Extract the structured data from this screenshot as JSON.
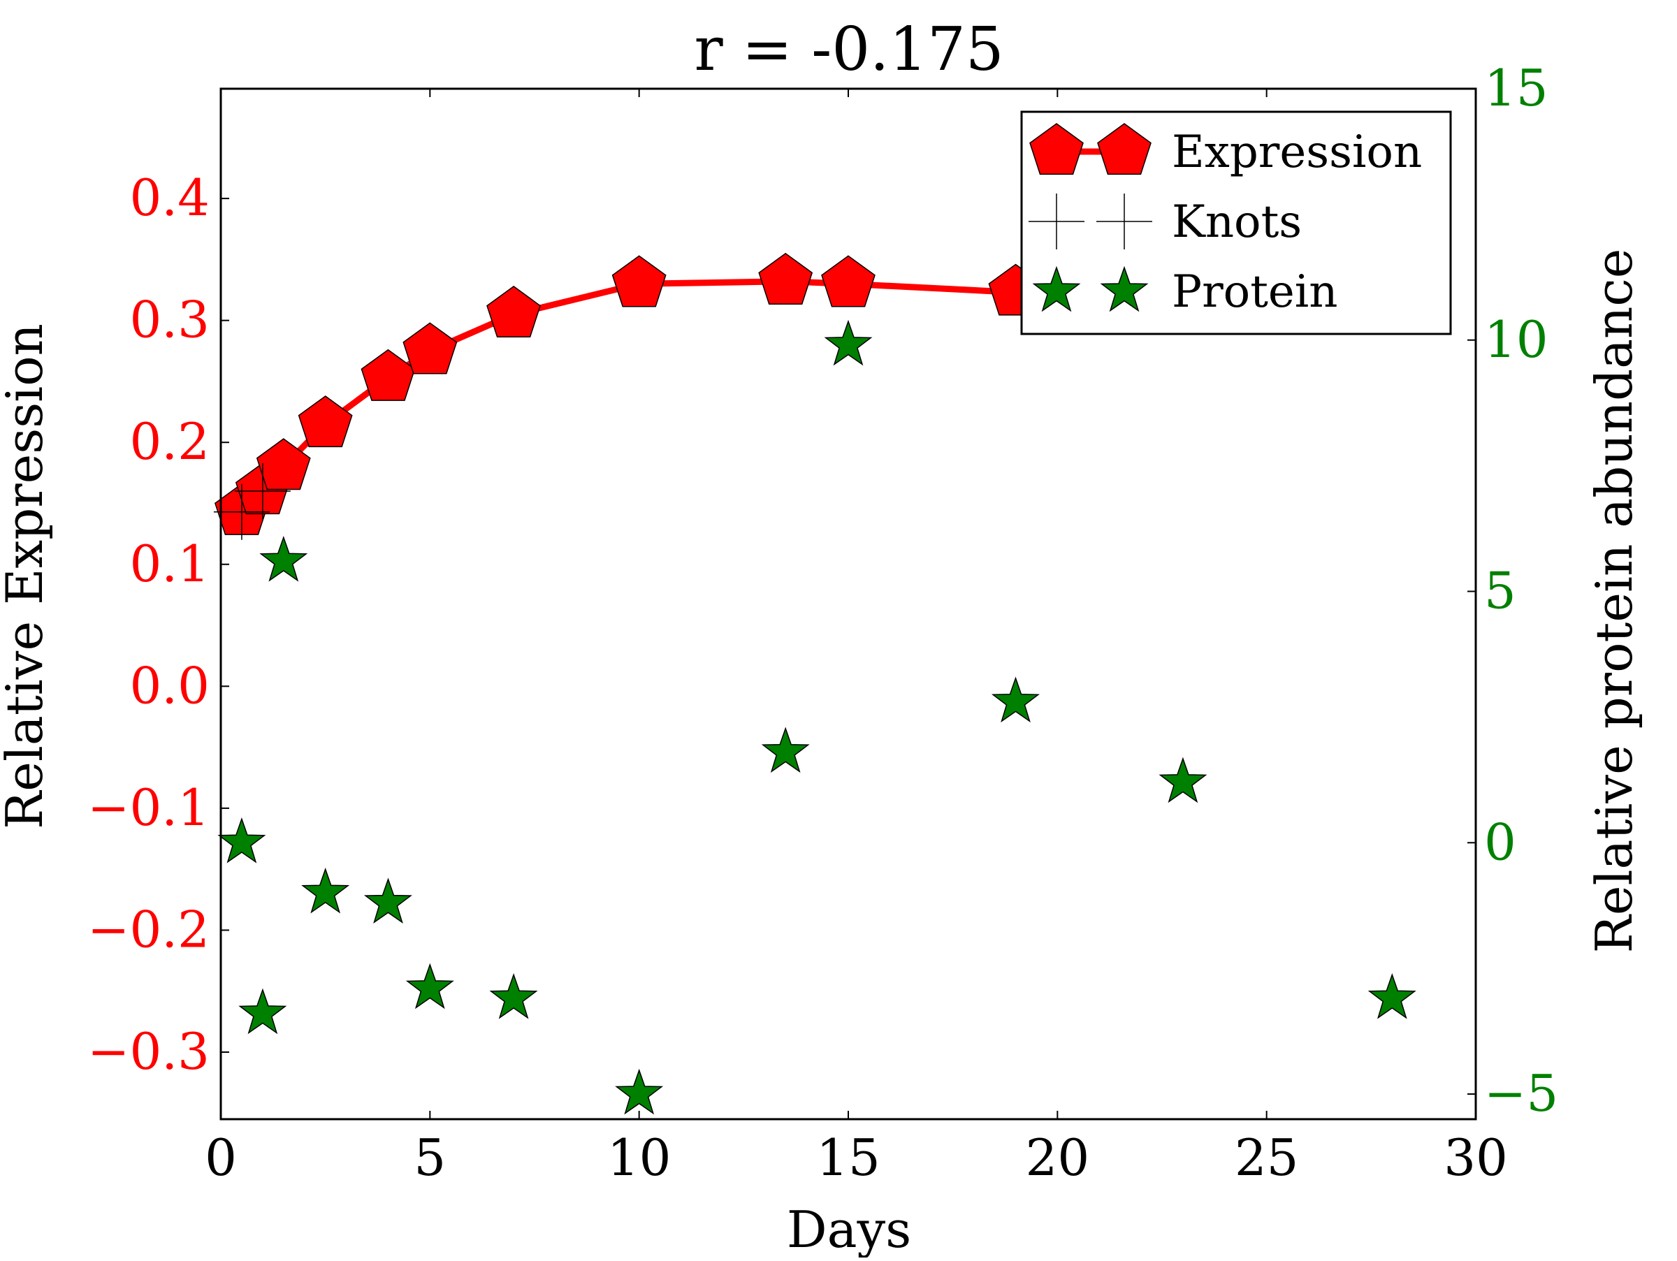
{
  "chart_data": {
    "type": "line",
    "title": "r = -0.175",
    "xlabel": "Days",
    "ylabel_left": "Relative Expression",
    "ylabel_right": "Relative protein abundance",
    "xlim": [
      0,
      30
    ],
    "ylim_left": [
      -0.355,
      0.49
    ],
    "ylim_right": [
      -5.5,
      15
    ],
    "x_ticks": [
      0,
      5,
      10,
      15,
      20,
      25,
      30
    ],
    "x_tick_labels": [
      "0",
      "5",
      "10",
      "15",
      "20",
      "25",
      "30"
    ],
    "left_ticks": [
      0.4,
      0.3,
      0.2,
      0.1,
      0.0,
      -0.1,
      -0.2,
      -0.3
    ],
    "left_tick_labels": [
      "0.4",
      "0.3",
      "0.2",
      "0.1",
      "0.0",
      "−0.1",
      "−0.2",
      "−0.3"
    ],
    "right_ticks": [
      15,
      10,
      5,
      0,
      -5
    ],
    "right_tick_labels": [
      "15",
      "10",
      "5",
      "0",
      "−5"
    ],
    "colors": {
      "expression": "#ff0000",
      "protein": "#008000",
      "left_axis": "#ff0000",
      "right_axis": "#008000",
      "knots": "#000000"
    },
    "legend": {
      "location": "top-right",
      "entries": [
        "Expression",
        "Knots",
        "Protein"
      ]
    },
    "series": [
      {
        "name": "Expression",
        "axis": "left",
        "marker": "pentagon",
        "line": true,
        "x": [
          0.5,
          1.0,
          1.5,
          2.5,
          4.0,
          5.0,
          7.0,
          10.0,
          13.5,
          15.0,
          19.0
        ],
        "y": [
          0.143,
          0.16,
          0.18,
          0.215,
          0.253,
          0.275,
          0.305,
          0.33,
          0.332,
          0.33,
          0.323
        ]
      },
      {
        "name": "Knots",
        "axis": "left",
        "marker": "plus",
        "line": false,
        "x": [
          0.5,
          1.0
        ],
        "y": [
          0.143,
          0.16
        ]
      },
      {
        "name": "Protein",
        "axis": "right",
        "marker": "star",
        "line": false,
        "x": [
          0.5,
          1.0,
          1.5,
          2.5,
          4.0,
          5.0,
          7.0,
          10.0,
          13.5,
          15.0,
          19.0,
          23.0,
          28.0
        ],
        "y": [
          0.0,
          -3.4,
          5.6,
          -1.0,
          -1.2,
          -2.9,
          -3.1,
          -5.0,
          1.8,
          9.9,
          2.8,
          1.2,
          -3.1
        ]
      }
    ]
  }
}
